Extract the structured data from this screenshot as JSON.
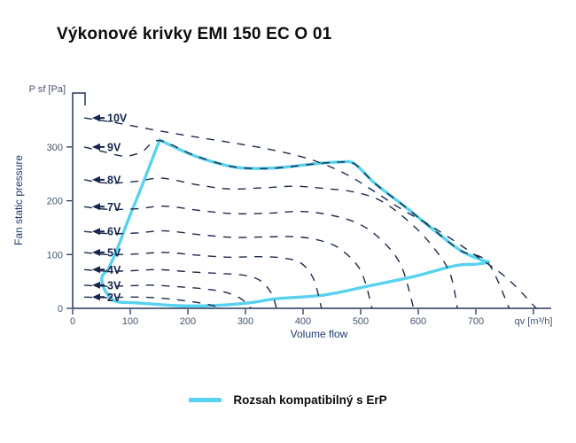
{
  "page": {
    "title": "Výkonové krivky EMI 150 EC O 01"
  },
  "legend": {
    "label": "Rozsah kompatibilný s ErP",
    "swatch_color": "#58d2ee"
  },
  "chart_data": {
    "type": "line",
    "title": "Výkonové krivky EMI 150 EC O 01",
    "xlabel": "Volume flow",
    "ylabel": "Fan static pressure",
    "x_unit": "qv [m³/h]",
    "y_unit": "P sf [Pa]",
    "xlim": [
      0,
      830
    ],
    "ylim": [
      0,
      400
    ],
    "x_ticks": [
      0,
      100,
      200,
      300,
      400,
      500,
      600,
      700
    ],
    "x_unit_pos": 800,
    "y_ticks": [
      0,
      100,
      200,
      300
    ],
    "grid": false,
    "curve_color": "#1c2b4a",
    "legend_position": "bottom",
    "series": [
      {
        "name": "10V",
        "style": "dashed",
        "points": [
          [
            20,
            354
          ],
          [
            70,
            346
          ],
          [
            130,
            334
          ],
          [
            200,
            321
          ],
          [
            270,
            309
          ],
          [
            340,
            296
          ],
          [
            410,
            278
          ],
          [
            470,
            252
          ],
          [
            520,
            220
          ],
          [
            570,
            185
          ],
          [
            630,
            148
          ],
          [
            700,
            98
          ],
          [
            755,
            55
          ],
          [
            805,
            0
          ]
        ]
      },
      {
        "name": "9V",
        "style": "dashed",
        "points": [
          [
            20,
            300
          ],
          [
            55,
            291
          ],
          [
            90,
            283
          ],
          [
            120,
            291
          ],
          [
            150,
            312
          ],
          [
            210,
            285
          ],
          [
            275,
            264
          ],
          [
            330,
            260
          ],
          [
            365,
            262
          ],
          [
            425,
            269
          ],
          [
            465,
            272
          ],
          [
            490,
            268
          ],
          [
            525,
            232
          ],
          [
            577,
            189
          ],
          [
            628,
            145
          ],
          [
            674,
            107
          ],
          [
            720,
            86
          ],
          [
            758,
            0
          ]
        ]
      },
      {
        "name": "8V",
        "style": "dashed",
        "points": [
          [
            20,
            239
          ],
          [
            60,
            233
          ],
          [
            110,
            236
          ],
          [
            155,
            242
          ],
          [
            215,
            230
          ],
          [
            270,
            222
          ],
          [
            330,
            224
          ],
          [
            385,
            227
          ],
          [
            435,
            223
          ],
          [
            485,
            217
          ],
          [
            535,
            200
          ],
          [
            585,
            160
          ],
          [
            625,
            115
          ],
          [
            655,
            65
          ],
          [
            668,
            0
          ]
        ]
      },
      {
        "name": "7V",
        "style": "dashed",
        "points": [
          [
            20,
            189
          ],
          [
            60,
            184
          ],
          [
            110,
            185
          ],
          [
            160,
            190
          ],
          [
            220,
            182
          ],
          [
            280,
            176
          ],
          [
            340,
            177
          ],
          [
            395,
            180
          ],
          [
            445,
            174
          ],
          [
            495,
            158
          ],
          [
            535,
            128
          ],
          [
            570,
            80
          ],
          [
            592,
            0
          ]
        ]
      },
      {
        "name": "6V",
        "style": "dashed",
        "points": [
          [
            20,
            143
          ],
          [
            60,
            139
          ],
          [
            110,
            140
          ],
          [
            160,
            144
          ],
          [
            220,
            137
          ],
          [
            280,
            132
          ],
          [
            340,
            133
          ],
          [
            390,
            133
          ],
          [
            430,
            126
          ],
          [
            465,
            110
          ],
          [
            500,
            70
          ],
          [
            520,
            0
          ]
        ]
      },
      {
        "name": "5V",
        "style": "dashed",
        "points": [
          [
            20,
            104
          ],
          [
            60,
            100
          ],
          [
            110,
            101
          ],
          [
            160,
            104
          ],
          [
            215,
            99
          ],
          [
            270,
            95
          ],
          [
            320,
            96
          ],
          [
            360,
            94
          ],
          [
            395,
            85
          ],
          [
            418,
            55
          ],
          [
            432,
            0
          ]
        ]
      },
      {
        "name": "4V",
        "style": "dashed",
        "points": [
          [
            20,
            72
          ],
          [
            60,
            69
          ],
          [
            105,
            70
          ],
          [
            150,
            72
          ],
          [
            200,
            68
          ],
          [
            250,
            65
          ],
          [
            295,
            62
          ],
          [
            325,
            52
          ],
          [
            345,
            28
          ],
          [
            354,
            0
          ]
        ]
      },
      {
        "name": "3V",
        "style": "dashed",
        "points": [
          [
            20,
            43
          ],
          [
            60,
            41
          ],
          [
            100,
            42
          ],
          [
            140,
            43
          ],
          [
            185,
            40
          ],
          [
            230,
            36
          ],
          [
            265,
            30
          ],
          [
            292,
            18
          ],
          [
            310,
            0
          ]
        ]
      },
      {
        "name": "2V",
        "style": "dashed",
        "points": [
          [
            20,
            21
          ],
          [
            60,
            20
          ],
          [
            100,
            21
          ],
          [
            140,
            20
          ],
          [
            180,
            16
          ],
          [
            215,
            11
          ],
          [
            240,
            6
          ],
          [
            258,
            0
          ]
        ]
      }
    ],
    "erp_region": {
      "name": "Rozsah kompatibilný s ErP",
      "color": "#58d2ee",
      "points": [
        [
          151,
          313
        ],
        [
          208,
          285
        ],
        [
          274,
          264
        ],
        [
          320,
          260
        ],
        [
          362,
          262
        ],
        [
          423,
          269
        ],
        [
          463,
          272
        ],
        [
          489,
          269
        ],
        [
          525,
          232
        ],
        [
          577,
          189
        ],
        [
          628,
          145
        ],
        [
          674,
          107
        ],
        [
          709,
          90
        ],
        [
          722,
          86
        ],
        [
          700,
          82
        ],
        [
          663,
          79
        ],
        [
          592,
          59
        ],
        [
          520,
          43
        ],
        [
          438,
          25
        ],
        [
          355,
          18
        ],
        [
          305,
          10
        ],
        [
          240,
          5
        ],
        [
          182,
          5
        ],
        [
          112,
          10
        ],
        [
          78,
          12
        ],
        [
          65,
          21
        ],
        [
          54,
          38
        ],
        [
          51,
          59
        ],
        [
          62,
          74
        ],
        [
          78,
          112
        ],
        [
          97,
          166
        ],
        [
          120,
          227
        ]
      ]
    }
  }
}
